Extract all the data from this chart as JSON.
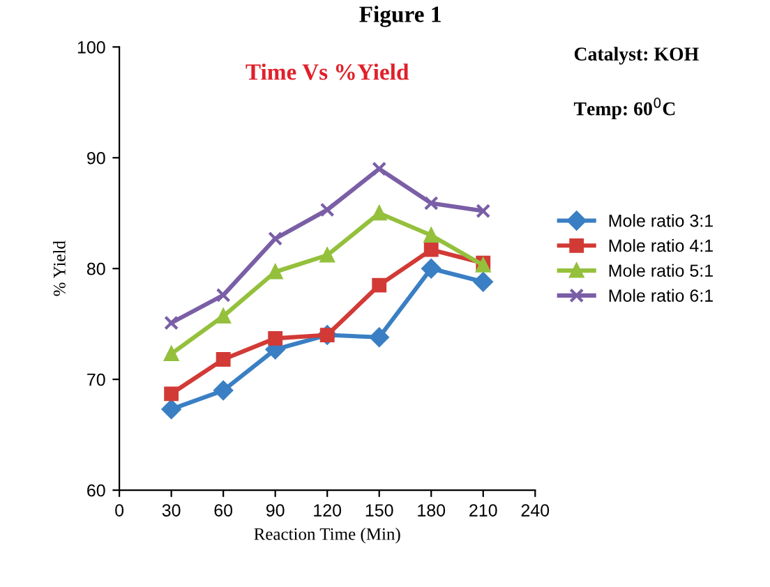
{
  "chart_data": {
    "type": "line",
    "title": "Time Vs %Yield",
    "xlabel": "Reaction Time (Min)",
    "ylabel": "% Yield",
    "annotations": [
      "Figure 1",
      "Catalyst: KOH",
      "Temp: 60$^{0}$C"
    ],
    "x": [
      30,
      60,
      90,
      120,
      150,
      180,
      210
    ],
    "series": [
      {
        "name": "Mole ratio 3:1",
        "color": "#3a7fc4",
        "marker": "diamond",
        "values": [
          67.3,
          69,
          72.7,
          74,
          73.8,
          80,
          78.8
        ]
      },
      {
        "name": "Mole ratio 4:1",
        "color": "#d23a36",
        "marker": "square",
        "values": [
          68.7,
          71.8,
          73.7,
          74,
          78.5,
          81.7,
          80.5
        ]
      },
      {
        "name": "Mole ratio 5:1",
        "color": "#94c03c",
        "marker": "triangle",
        "values": [
          72.3,
          75.7,
          79.7,
          81.2,
          85,
          83,
          80.3
        ]
      },
      {
        "name": "Mole ratio 6:1",
        "color": "#7a5ea6",
        "marker": "cross",
        "values": [
          75.1,
          77.6,
          82.7,
          85.3,
          89,
          85.9,
          85.2
        ]
      }
    ],
    "xlim": [
      0,
      240
    ],
    "xticks": [
      0,
      30,
      60,
      90,
      120,
      150,
      180,
      210,
      240
    ],
    "ylim": [
      60,
      100
    ],
    "yticks": [
      60,
      70,
      80,
      90,
      100
    ],
    "grid": false,
    "legend": "right",
    "line_style": "solid"
  }
}
